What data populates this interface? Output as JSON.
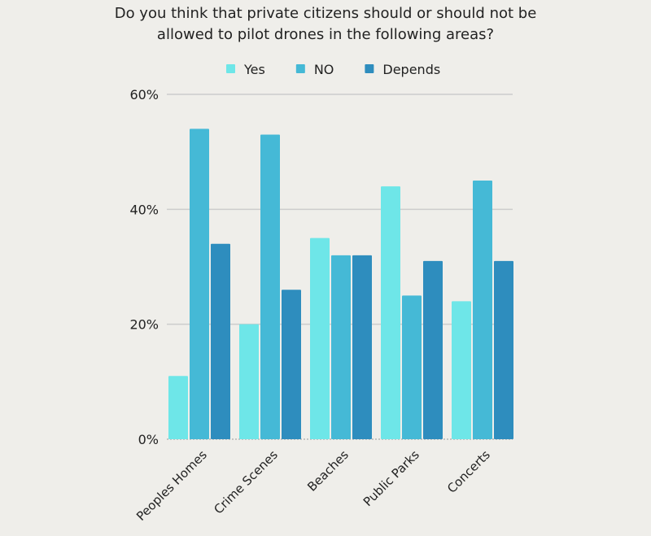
{
  "chart_data": {
    "type": "bar",
    "title": "Do you think that private citizens should or should not be allowed to pilot drones in the following areas?",
    "categories": [
      "Peoples Homes",
      "Crime Scenes",
      "Beaches",
      "Public Parks",
      "Concerts"
    ],
    "series": [
      {
        "name": "Yes",
        "color": "#6ee6e8",
        "values": [
          11,
          20,
          35,
          44,
          24
        ]
      },
      {
        "name": "NO",
        "color": "#45b9d6",
        "values": [
          54,
          53,
          32,
          25,
          45
        ]
      },
      {
        "name": "Depends",
        "color": "#2e8dbe",
        "values": [
          34,
          26,
          32,
          31,
          31
        ]
      }
    ],
    "yticks": [
      "0%",
      "20%",
      "40%",
      "60%"
    ],
    "ytick_values": [
      0,
      20,
      40,
      60
    ],
    "ylim": [
      0,
      60
    ],
    "xlabel": "",
    "ylabel": "",
    "grid": true,
    "legend_position": "top-center"
  }
}
